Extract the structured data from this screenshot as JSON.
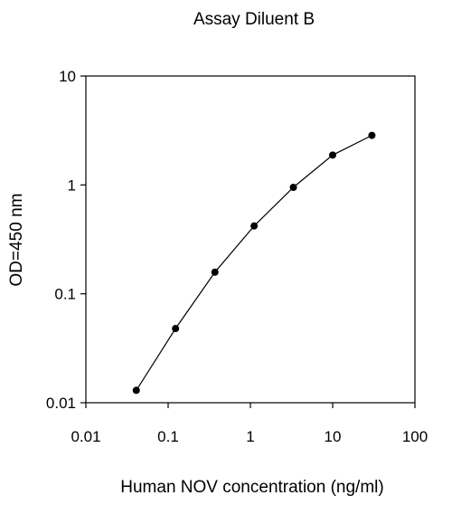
{
  "chart_data": {
    "type": "line",
    "title": "Assay Diluent B",
    "xlabel": "Human NOV concentration (ng/ml)",
    "ylabel": "OD=450 nm",
    "xscale": "log",
    "yscale": "log",
    "xlim": [
      0.01,
      100
    ],
    "ylim": [
      0.01,
      10
    ],
    "x_ticks": [
      "0.01",
      "0.1",
      "1",
      "10",
      "100"
    ],
    "y_ticks": [
      "0.01",
      "0.1",
      "1",
      "10"
    ],
    "grid": false,
    "series": [
      {
        "x": [
          0.041,
          0.123,
          0.37,
          1.11,
          3.33,
          10,
          30
        ],
        "y": [
          0.013,
          0.048,
          0.158,
          0.42,
          0.95,
          1.88,
          2.85
        ]
      }
    ]
  }
}
